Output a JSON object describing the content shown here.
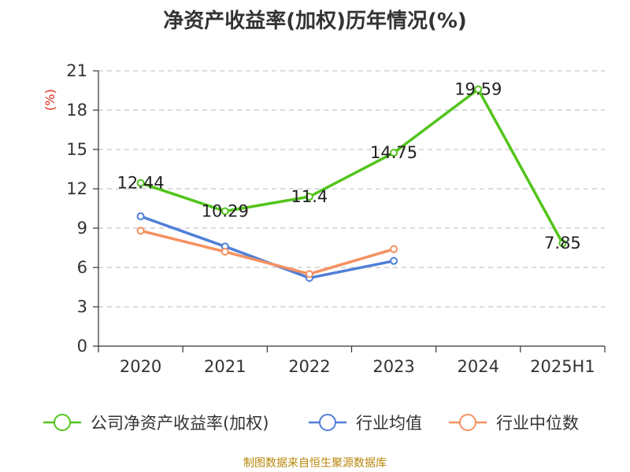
{
  "chart_data": {
    "type": "line",
    "title": "净资产收益率(加权)历年情况(%)",
    "ylabel": "(%)",
    "ylim": [
      0,
      21
    ],
    "yticks": [
      0,
      3,
      6,
      9,
      12,
      15,
      18,
      21
    ],
    "grid": true,
    "legend_position": "bottom",
    "categories": [
      "2020",
      "2021",
      "2022",
      "2023",
      "2024",
      "2025H1"
    ],
    "series": [
      {
        "name": "公司净资产收益率(加权)",
        "color": "#52c41a",
        "values": [
          12.44,
          10.29,
          11.4,
          14.75,
          19.59,
          7.85
        ],
        "data_labels": true
      },
      {
        "name": "行业均值",
        "color": "#4f7fd8",
        "values": [
          9.9,
          7.6,
          5.2,
          6.5,
          null,
          null
        ],
        "data_labels": false
      },
      {
        "name": "行业中位数",
        "color": "#f59161",
        "values": [
          8.8,
          7.2,
          5.5,
          7.4,
          null,
          null
        ],
        "data_labels": false
      }
    ]
  },
  "source": "制图数据来自恒生聚源数据库"
}
